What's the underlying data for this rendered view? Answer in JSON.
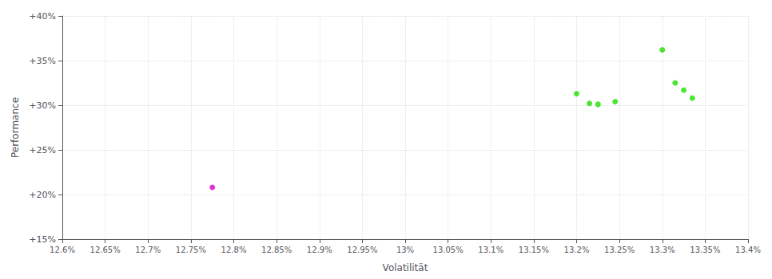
{
  "chart_data": {
    "type": "scatter",
    "xlabel": "Volatilität",
    "ylabel": "Performance",
    "xlim": [
      12.6,
      13.4
    ],
    "ylim": [
      15,
      40
    ],
    "xticks": [
      {
        "value": 12.6,
        "label": "12.6%"
      },
      {
        "value": 12.65,
        "label": "12.65%"
      },
      {
        "value": 12.7,
        "label": "12.7%"
      },
      {
        "value": 12.75,
        "label": "12.75%"
      },
      {
        "value": 12.8,
        "label": "12.8%"
      },
      {
        "value": 12.85,
        "label": "12.85%"
      },
      {
        "value": 12.9,
        "label": "12.9%"
      },
      {
        "value": 12.95,
        "label": "12.95%"
      },
      {
        "value": 13.0,
        "label": "13%"
      },
      {
        "value": 13.05,
        "label": "13.05%"
      },
      {
        "value": 13.1,
        "label": "13.1%"
      },
      {
        "value": 13.15,
        "label": "13.15%"
      },
      {
        "value": 13.2,
        "label": "13.2%"
      },
      {
        "value": 13.25,
        "label": "13.25%"
      },
      {
        "value": 13.3,
        "label": "13.3%"
      },
      {
        "value": 13.35,
        "label": "13.35%"
      },
      {
        "value": 13.4,
        "label": "13.4%"
      }
    ],
    "yticks": [
      {
        "value": 15,
        "label": "+15%"
      },
      {
        "value": 20,
        "label": "+20%"
      },
      {
        "value": 25,
        "label": "+25%"
      },
      {
        "value": 30,
        "label": "+30%"
      },
      {
        "value": 35,
        "label": "+35%"
      },
      {
        "value": 40,
        "label": "+40%"
      }
    ],
    "grid": true,
    "series": [
      {
        "color": "#22dd00",
        "x": [
          13.2,
          13.215,
          13.225,
          13.245,
          13.3,
          13.315,
          13.325,
          13.335
        ],
        "values": [
          31.3,
          30.2,
          30.1,
          30.4,
          36.2,
          32.5,
          31.7,
          30.8
        ]
      },
      {
        "color": "#dd00cc",
        "x": [
          12.775
        ],
        "values": [
          20.8
        ]
      }
    ]
  }
}
